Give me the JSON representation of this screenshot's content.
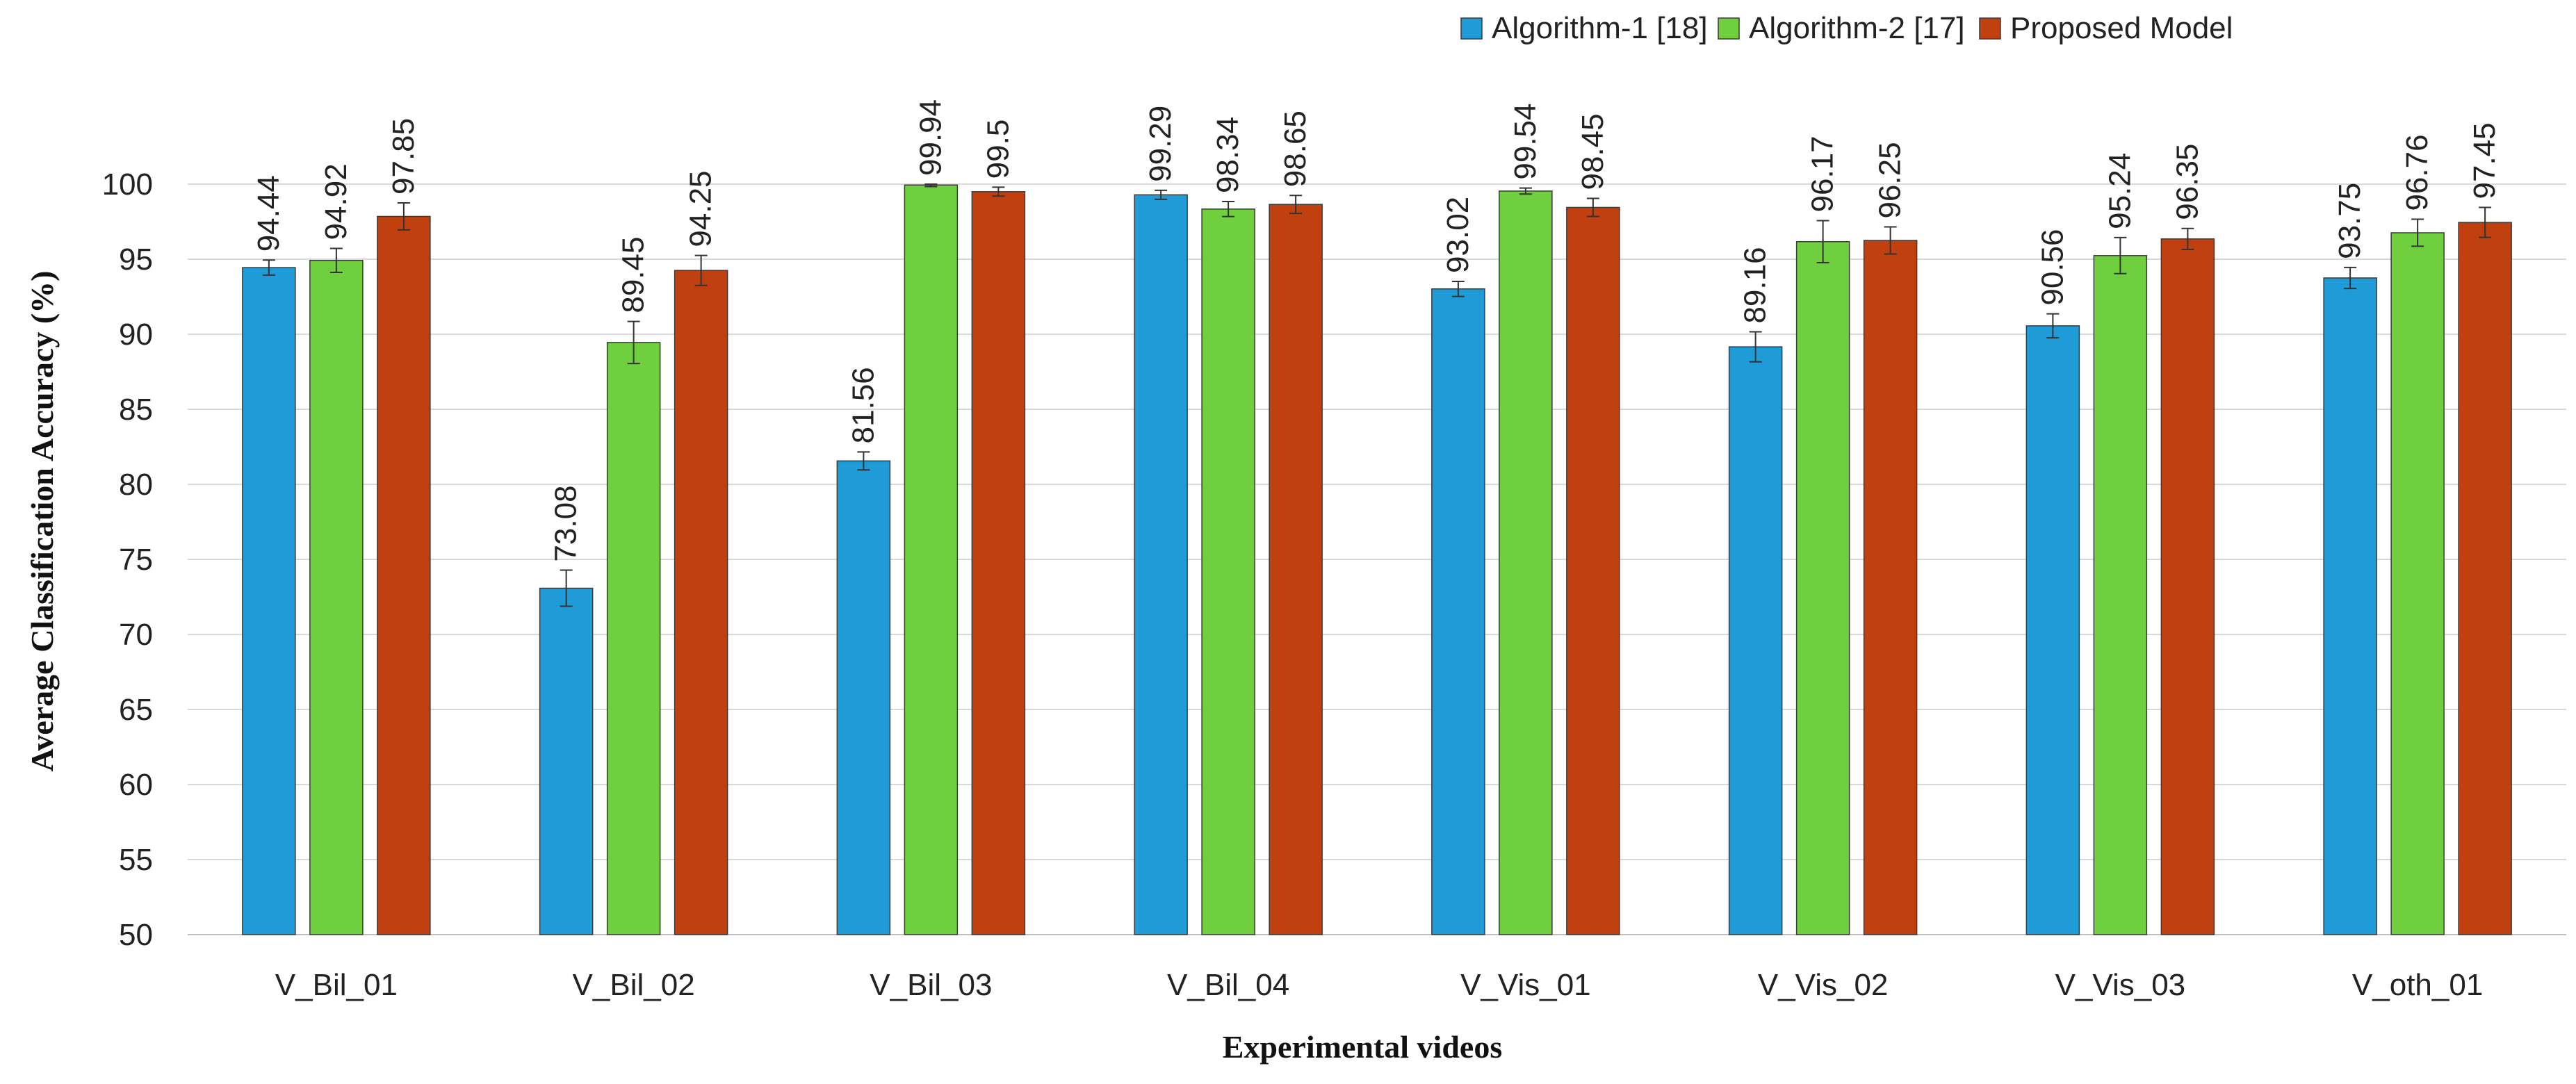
{
  "chart_data": {
    "type": "bar",
    "title": "",
    "xlabel": "Experimental videos",
    "ylabel": "Average Classification Accuracy (%)",
    "ylim": [
      50,
      100
    ],
    "yticks": [
      50,
      55,
      60,
      65,
      70,
      75,
      80,
      85,
      90,
      95,
      100
    ],
    "grid": true,
    "legend_position": "top-right",
    "categories": [
      "V_Bil_01",
      "V_Bil_02",
      "V_Bil_03",
      "V_Bil_04",
      "V_Vis_01",
      "V_Vis_02",
      "V_Vis_03",
      "V_oth_01"
    ],
    "series": [
      {
        "name": "Algorithm-1 [18]",
        "color": "#1f9bd7",
        "values": [
          94.44,
          73.08,
          81.56,
          99.29,
          93.02,
          89.16,
          90.56,
          93.75
        ],
        "labels": [
          "94.44",
          "73.08",
          "81.56",
          "99.29",
          "93.02",
          "89.16",
          "90.56",
          "93.75"
        ],
        "errors": [
          0.5,
          1.2,
          0.6,
          0.3,
          0.5,
          1.0,
          0.8,
          0.7
        ]
      },
      {
        "name": "Algorithm-2 [17]",
        "color": "#6fcf3f",
        "values": [
          94.92,
          89.45,
          99.94,
          98.34,
          99.54,
          96.17,
          95.24,
          96.76
        ],
        "labels": [
          "94.92",
          "89.45",
          "99.94",
          "98.34",
          "99.54",
          "96.17",
          "95.24",
          "96.76"
        ],
        "errors": [
          0.8,
          1.4,
          0.1,
          0.5,
          0.2,
          1.4,
          1.2,
          0.9
        ]
      },
      {
        "name": "Proposed Model",
        "color": "#c0410f",
        "values": [
          97.85,
          94.25,
          99.5,
          98.65,
          98.45,
          96.25,
          96.35,
          97.45
        ],
        "labels": [
          "97.85",
          "94.25",
          "99.5",
          "98.65",
          "98.45",
          "96.25",
          "96.35",
          "97.45"
        ],
        "errors": [
          0.9,
          1.0,
          0.3,
          0.6,
          0.6,
          0.9,
          0.7,
          1.0
        ]
      }
    ]
  }
}
